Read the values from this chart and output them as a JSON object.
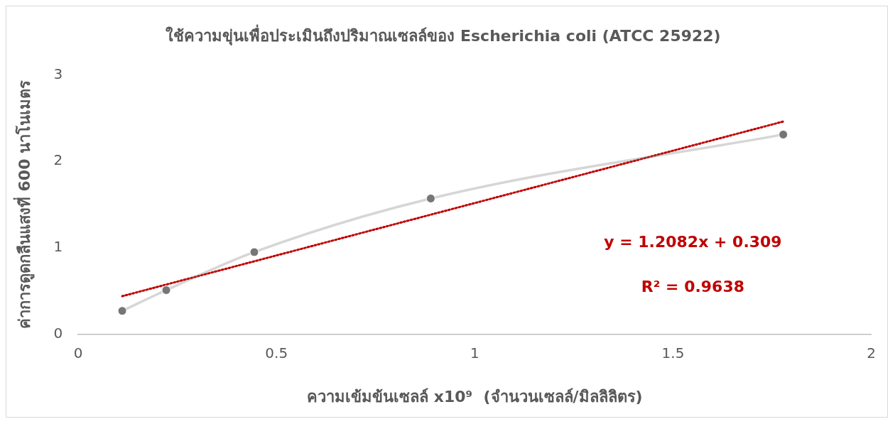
{
  "chart_data": {
    "type": "line",
    "title": "ใช้ความขุ่นเพื่อประเมินถึงปริมาณเซลล์ของ Escherichia coli (ATCC 25922)",
    "xlabel": "ความเข้มข้นเซลล์ x10⁹  (จำนวนเซลล์/มิลลิลิตร)",
    "ylabel": "ค่าการดูดกลืนแสงที่ 600 นาโนเมตร",
    "x": [
      0.111,
      0.222,
      0.444,
      0.889,
      1.778
    ],
    "series": [
      {
        "type": "line",
        "color": "#767676",
        "marker": "circle",
        "line_style": "solid",
        "values": [
          0.27,
          0.51,
          0.95,
          1.57,
          2.31
        ]
      },
      {
        "type": "line",
        "color": "#c00000",
        "marker": "none",
        "line_style": "dotted",
        "x": [
          0.111,
          1.778
        ],
        "values": [
          0.44,
          2.46
        ]
      }
    ],
    "xlim": [
      0,
      2
    ],
    "xticks": [
      0,
      0.5,
      1,
      1.5,
      2
    ],
    "ylim": [
      0,
      3
    ],
    "yticks": [
      0,
      1,
      2,
      3
    ],
    "grid": false,
    "legend": false,
    "annotations": [
      "y = 1.2082x + 0.309",
      "R² = 0.9638"
    ]
  }
}
